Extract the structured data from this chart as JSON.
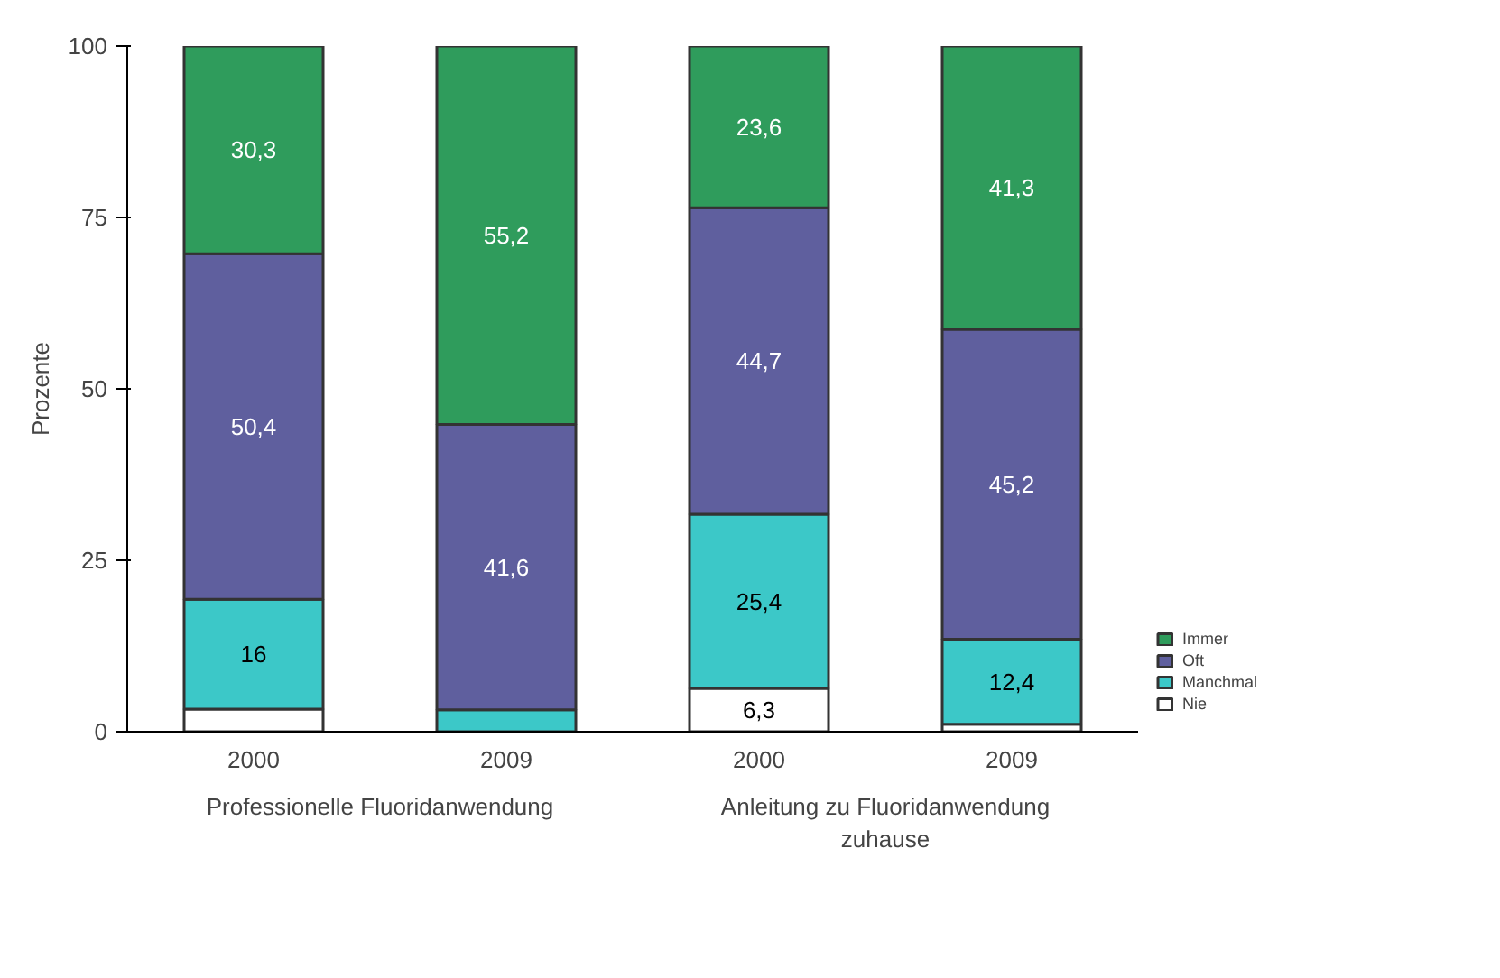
{
  "chart_data": {
    "type": "bar",
    "stacked": true,
    "ylabel": "Prozente",
    "categories": [
      "2000",
      "2009",
      "2000",
      "2009"
    ],
    "annotations": [
      "Professionelle Fluoridanwendung",
      "Anleitung zu Fluoridanwendung\nzuhause"
    ],
    "series": [
      {
        "name": "Nie",
        "color": "#ffffff",
        "values": [
          3.3,
          0,
          6.3,
          1.1
        ],
        "value_labels": [
          null,
          null,
          "6,3",
          null
        ]
      },
      {
        "name": "Manchmal",
        "color": "#3cc8c8",
        "values": [
          16,
          3.2,
          25.4,
          12.4
        ],
        "value_labels": [
          "16",
          null,
          "25,4",
          "12,4"
        ]
      },
      {
        "name": "Oft",
        "color": "#5f5f9e",
        "values": [
          50.4,
          41.6,
          44.7,
          45.2
        ],
        "value_labels": [
          "50,4",
          "41,6",
          "44,7",
          "45,2"
        ]
      },
      {
        "name": "Immer",
        "color": "#2f9c5c",
        "values": [
          30.3,
          55.2,
          23.6,
          41.3
        ],
        "value_labels": [
          "30,3",
          "55,2",
          "23,6",
          "41,3"
        ]
      }
    ],
    "ylim": [
      0,
      100
    ],
    "yticks": [
      0,
      25,
      50,
      75,
      100
    ],
    "grid": false,
    "legend": "right"
  }
}
